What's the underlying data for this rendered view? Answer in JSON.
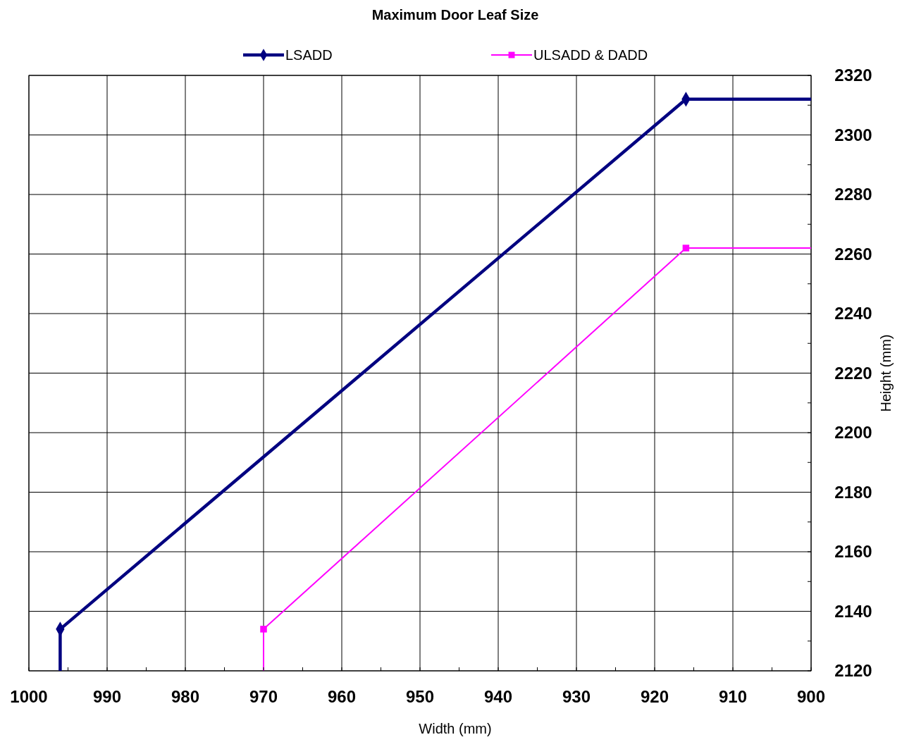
{
  "chart_data": {
    "type": "line",
    "title": "Maximum Door Leaf Size",
    "xlabel": "Width (mm)",
    "ylabel": "Height (mm)",
    "xlim": [
      1000,
      900
    ],
    "ylim": [
      2120,
      2320
    ],
    "xticks": [
      1000,
      {
        "value": 995,
        "label": null
      },
      990,
      {
        "value": 985,
        "label": null
      },
      980,
      {
        "value": 975,
        "label": null
      },
      970,
      {
        "value": 965,
        "label": null
      },
      960,
      {
        "value": 955,
        "label": null
      },
      950,
      {
        "value": 945,
        "label": null
      },
      940,
      {
        "value": 935,
        "label": null
      },
      930,
      {
        "value": 925,
        "label": null
      },
      920,
      {
        "value": 915,
        "label": null
      },
      910,
      {
        "value": 905,
        "label": null
      },
      900
    ],
    "yticks": [
      2120,
      {
        "value": 2130,
        "label": null
      },
      2140,
      {
        "value": 2150,
        "label": null
      },
      2160,
      {
        "value": 2170,
        "label": null
      },
      2180,
      {
        "value": 2190,
        "label": null
      },
      2200,
      {
        "value": 2210,
        "label": null
      },
      2220,
      {
        "value": 2230,
        "label": null
      },
      2240,
      {
        "value": 2250,
        "label": null
      },
      2260,
      {
        "value": 2270,
        "label": null
      },
      2280,
      {
        "value": 2290,
        "label": null
      },
      2300,
      {
        "value": 2310,
        "label": null
      },
      2320
    ],
    "grid": true,
    "legend": "top",
    "series": [
      {
        "name": "LSADD",
        "color": "#000080",
        "marker": "diamond",
        "x": [
          996,
          996,
          916,
          900
        ],
        "values": [
          2120,
          2134,
          2312,
          2312
        ]
      },
      {
        "name": "ULSADD & DADD",
        "color": "#ff00ff",
        "marker": "square",
        "x": [
          970,
          970,
          916,
          900
        ],
        "values": [
          2120,
          2134,
          2262,
          2262
        ]
      }
    ]
  }
}
